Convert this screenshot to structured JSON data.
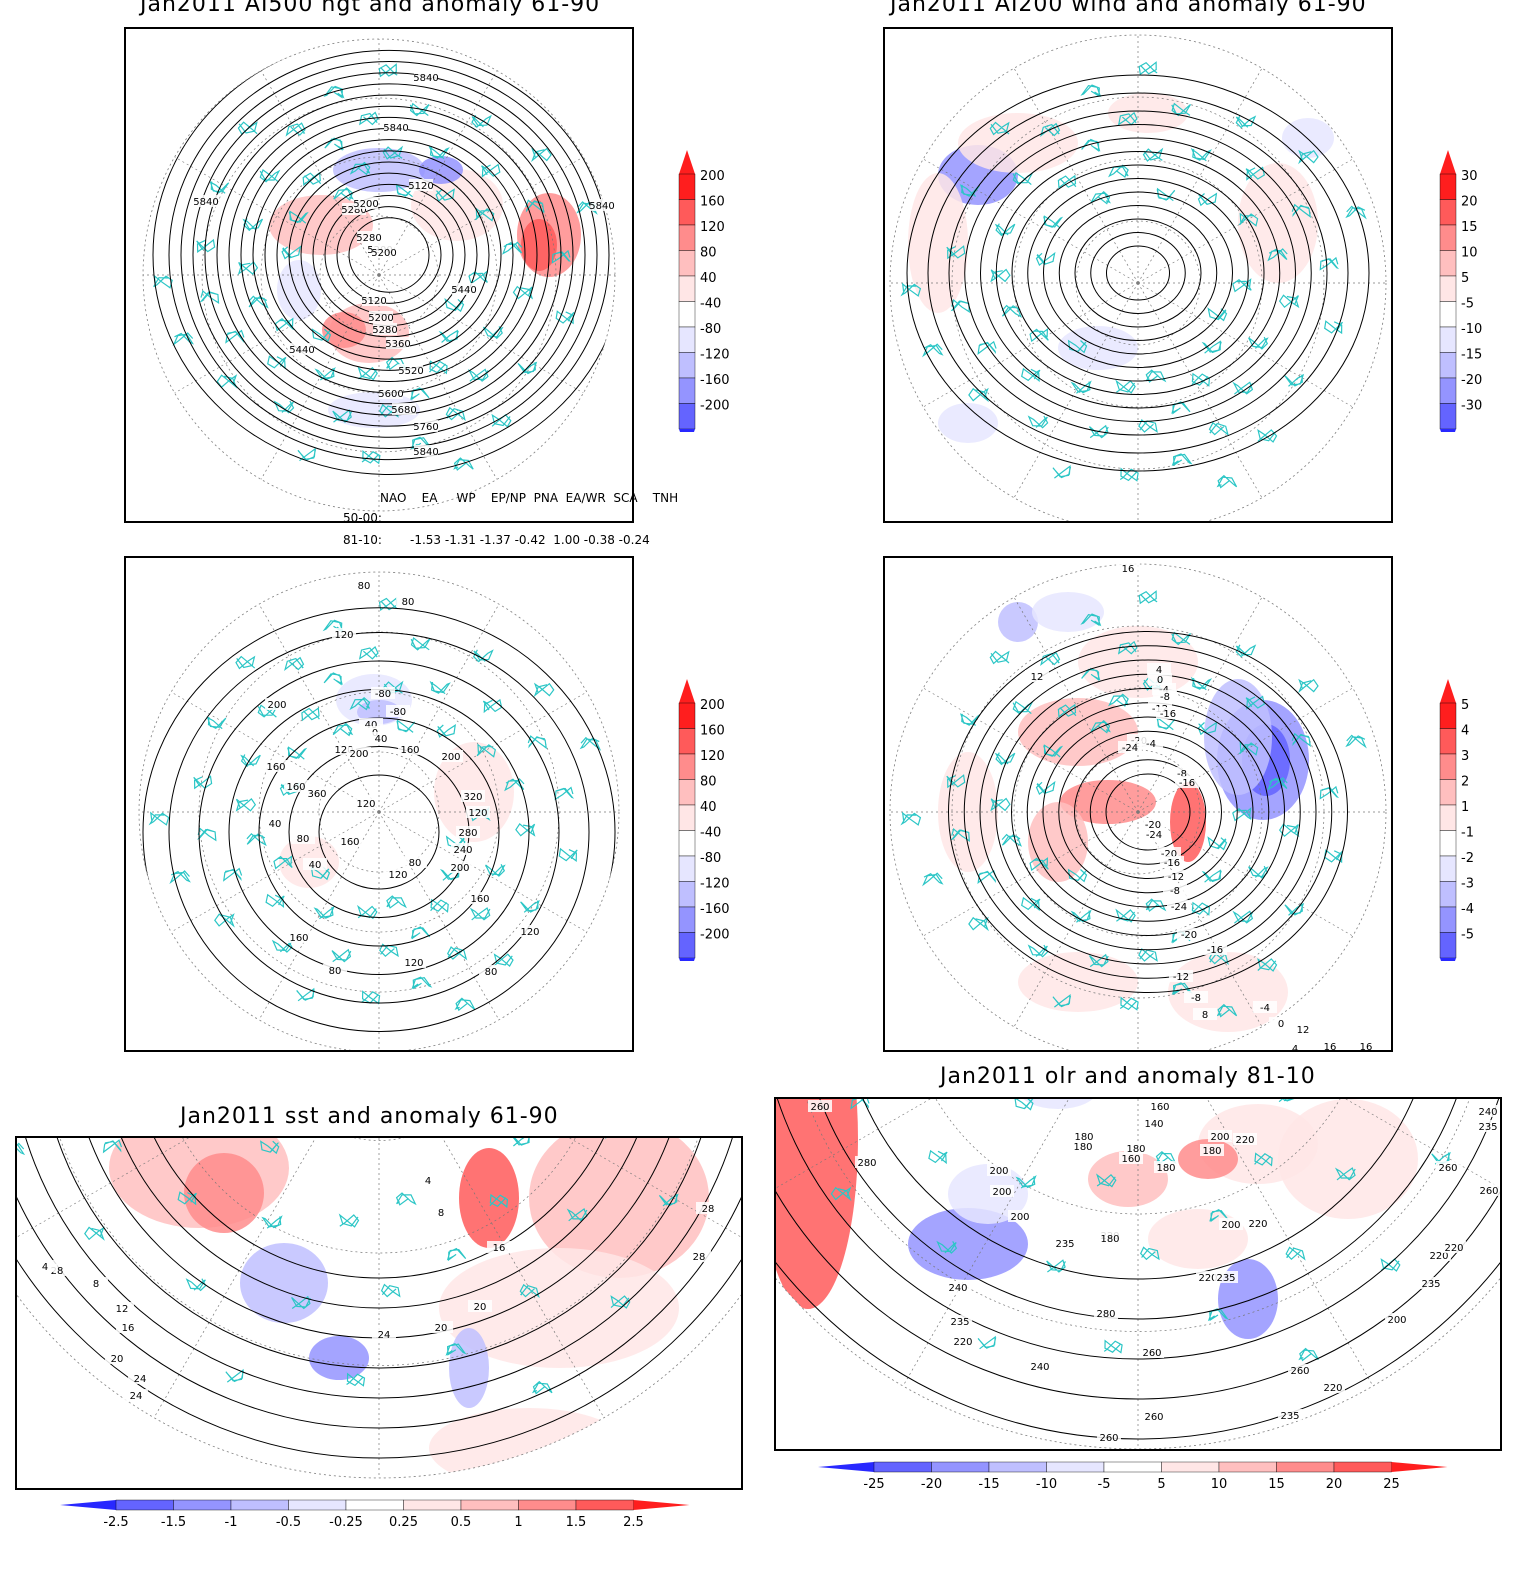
{
  "panels": {
    "p1": {
      "title": "Jan2011 AI500 hgt and anomaly 61-90",
      "contour_labels": [
        "5840",
        "5840",
        "5840",
        "5840",
        "5120",
        "5280",
        "5200",
        "5280",
        "5200",
        "5200",
        "5120",
        "5440",
        "5440",
        "5200",
        "5280",
        "5360",
        "5520",
        "5600",
        "5680",
        "5760",
        "5840"
      ]
    },
    "p2": {
      "title": "Jan2011 AI200 wind and anomaly 61-90"
    },
    "p3": {
      "contour_labels": [
        "80",
        "80",
        "120",
        "200",
        "-80",
        "-80",
        "40",
        "0",
        "40",
        "160",
        "120",
        "200",
        "200",
        "160",
        "160",
        "360",
        "320",
        "120",
        "120",
        "40",
        "80",
        "160",
        "280",
        "240",
        "200",
        "80",
        "40",
        "120",
        "160",
        "120",
        "160",
        "120",
        "80",
        "80"
      ]
    },
    "p4": {
      "contour_labels": [
        "16",
        "12",
        "4",
        "0",
        "-4",
        "-8",
        "-12",
        "-16",
        "-20",
        "-24",
        "-4",
        "-8",
        "-16",
        "-20",
        "-24",
        "-20",
        "-16",
        "-12",
        "-8",
        "-24",
        "-20",
        "-16",
        "-12",
        "-8",
        "-4",
        "0",
        "4",
        "8",
        "12",
        "16",
        "16",
        "16",
        "16",
        "20",
        "20"
      ]
    },
    "p5": {
      "title": "Jan2011 sst and anomaly 61-90",
      "contour_labels": [
        "28",
        "4",
        "8",
        "12",
        "16",
        "20",
        "24",
        "24",
        "4",
        "8",
        "16",
        "20",
        "20",
        "24",
        "28",
        "28"
      ]
    },
    "p6": {
      "title": "Jan2011 olr and anomaly 81-10",
      "contour_labels": [
        "260",
        "280",
        "180",
        "160",
        "180",
        "140",
        "200",
        "180",
        "220",
        "200",
        "200",
        "200",
        "180",
        "160",
        "180",
        "220",
        "200",
        "235",
        "220",
        "180",
        "220",
        "235",
        "240",
        "235",
        "220",
        "240",
        "235",
        "260",
        "260",
        "280",
        "260",
        "220",
        "235",
        "220",
        "260",
        "200",
        "220",
        "235",
        "240",
        "260",
        "260"
      ]
    }
  },
  "indices": {
    "header": "NAO    EA     WP    EP/NP  PNA  EA/WR  SCA    TNH",
    "row1_label": "50-00:",
    "row2_label": "81-10:",
    "row2_values": "-1.53 -1.31 -1.37 -0.42  1.00 -0.38 -0.24"
  },
  "colorbars": {
    "hgt": {
      "labels": [
        "200",
        "160",
        "120",
        "80",
        "40",
        "-40",
        "-80",
        "-120",
        "-160",
        "-200"
      ]
    },
    "wind": {
      "labels": [
        "30",
        "20",
        "15",
        "10",
        "5",
        "-5",
        "-10",
        "-15",
        "-20",
        "-30"
      ]
    },
    "hgt2": {
      "labels": [
        "200",
        "160",
        "120",
        "80",
        "40",
        "-40",
        "-80",
        "-120",
        "-160",
        "-200"
      ]
    },
    "t": {
      "labels": [
        "5",
        "4",
        "3",
        "2",
        "1",
        "-1",
        "-2",
        "-3",
        "-4",
        "-5"
      ]
    },
    "sst": {
      "labels": [
        "-2.5",
        "-1.5",
        "-1",
        "-0.5",
        "-0.25",
        "0.25",
        "0.5",
        "1",
        "1.5",
        "2.5"
      ]
    },
    "olr": {
      "labels": [
        "-25",
        "-20",
        "-15",
        "-10",
        "-5",
        "5",
        "10",
        "15",
        "20",
        "25"
      ]
    }
  },
  "colors": {
    "coast": "#2cc6c6",
    "contour": "#000000",
    "pos": [
      "#ffe6e6",
      "#ffbfbf",
      "#ff8c8c",
      "#ff5a5a",
      "#ff1e1e"
    ],
    "neg": [
      "#e6e6ff",
      "#bfbfff",
      "#9494ff",
      "#6464ff",
      "#2828ff"
    ]
  }
}
